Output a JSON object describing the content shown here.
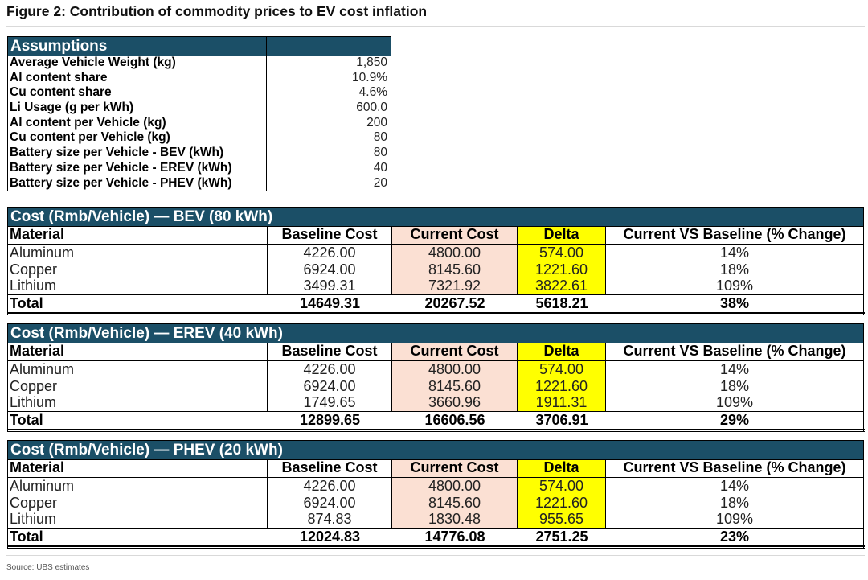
{
  "figure_title": "Figure 2: Contribution of commodity prices to EV cost inflation",
  "assumptions": {
    "title": "Assumptions",
    "rows": [
      {
        "label": "Average Vehicle Weight (kg)",
        "value": "1,850"
      },
      {
        "label": "Al content share",
        "value": "10.9%"
      },
      {
        "label": "Cu content share",
        "value": "4.6%"
      },
      {
        "label": "Li Usage (g per kWh)",
        "value": "600.0"
      },
      {
        "label": "Al content per Vehicle (kg)",
        "value": "200"
      },
      {
        "label": "Cu content per Vehicle (kg)",
        "value": "80"
      },
      {
        "label": "Battery size per Vehicle - BEV (kWh)",
        "value": "80"
      },
      {
        "label": "Battery size per Vehicle - EREV (kWh)",
        "value": "40"
      },
      {
        "label": "Battery size per Vehicle - PHEV (kWh)",
        "value": "20"
      }
    ]
  },
  "tables": [
    {
      "title": "Cost  (Rmb/Vehicle) — BEV (80 kWh)",
      "columns": [
        "Material",
        "Baseline Cost",
        "Current Cost",
        "Delta",
        "Current VS Baseline (% Change)"
      ],
      "rows": [
        [
          "Aluminum",
          "4226.00",
          "4800.00",
          "574.00",
          "14%"
        ],
        [
          "Copper",
          "6924.00",
          "8145.60",
          "1221.60",
          "18%"
        ],
        [
          "Lithium",
          "3499.31",
          "7321.92",
          "3822.61",
          "109%"
        ]
      ],
      "total": [
        "Total",
        "14649.31",
        "20267.52",
        "5618.21",
        "38%"
      ]
    },
    {
      "title": "Cost  (Rmb/Vehicle) — EREV (40 kWh)",
      "columns": [
        "Material",
        "Baseline Cost",
        "Current Cost",
        "Delta",
        "Current VS Baseline (% Change)"
      ],
      "rows": [
        [
          "Aluminum",
          "4226.00",
          "4800.00",
          "574.00",
          "14%"
        ],
        [
          "Copper",
          "6924.00",
          "8145.60",
          "1221.60",
          "18%"
        ],
        [
          "Lithium",
          "1749.65",
          "3660.96",
          "1911.31",
          "109%"
        ]
      ],
      "total": [
        "Total",
        "12899.65",
        "16606.56",
        "3706.91",
        "29%"
      ]
    },
    {
      "title": "Cost  (Rmb/Vehicle) — PHEV (20 kWh)",
      "columns": [
        "Material",
        "Baseline Cost",
        "Current Cost",
        "Delta",
        "Current VS Baseline (% Change)"
      ],
      "rows": [
        [
          "Aluminum",
          "4226.00",
          "4800.00",
          "574.00",
          "14%"
        ],
        [
          "Copper",
          "6924.00",
          "8145.60",
          "1221.60",
          "18%"
        ],
        [
          "Lithium",
          "874.83",
          "1830.48",
          "955.65",
          "109%"
        ]
      ],
      "total": [
        "Total",
        "12024.83",
        "14776.08",
        "2751.25",
        "23%"
      ]
    }
  ],
  "source_note": "Source: UBS estimates",
  "colors": {
    "header_bg": "#1b4f67",
    "current_cost_bg": "#fbe0d3",
    "delta_bg": "#ffff00"
  }
}
